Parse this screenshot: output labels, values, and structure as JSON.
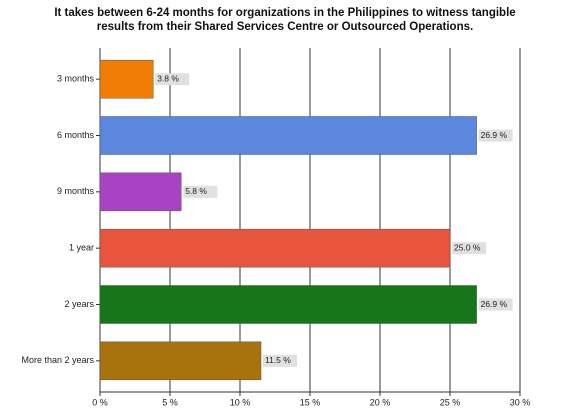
{
  "chart_data": {
    "type": "bar",
    "orientation": "horizontal",
    "title": "It takes between 6-24 months for organizations in the Philippines to witness tangible results from their Shared Services Centre or Outsourced Operations.",
    "categories": [
      "3 months",
      "6 months",
      "9 months",
      "1 year",
      "2 years",
      "More than 2 years"
    ],
    "values": [
      3.8,
      26.9,
      5.8,
      25.0,
      26.9,
      11.5
    ],
    "value_labels": [
      "3.8 %",
      "26.9 %",
      "5.8 %",
      "25.0 %",
      "26.9 %",
      "11.5 %"
    ],
    "colors": [
      "#f07d05",
      "#5b88de",
      "#a843c6",
      "#e8553c",
      "#16771a",
      "#a8720c"
    ],
    "xlim": [
      0,
      30
    ],
    "xticks": [
      {
        "value": 0,
        "label": "0 %"
      },
      {
        "value": 5,
        "label": "5 %"
      },
      {
        "value": 10,
        "label": "10 %"
      },
      {
        "value": 15,
        "label": "15 %"
      },
      {
        "value": 20,
        "label": "20 %"
      },
      {
        "value": 25,
        "label": "25 %"
      },
      {
        "value": 30,
        "label": "30 %"
      }
    ],
    "grid": true
  }
}
